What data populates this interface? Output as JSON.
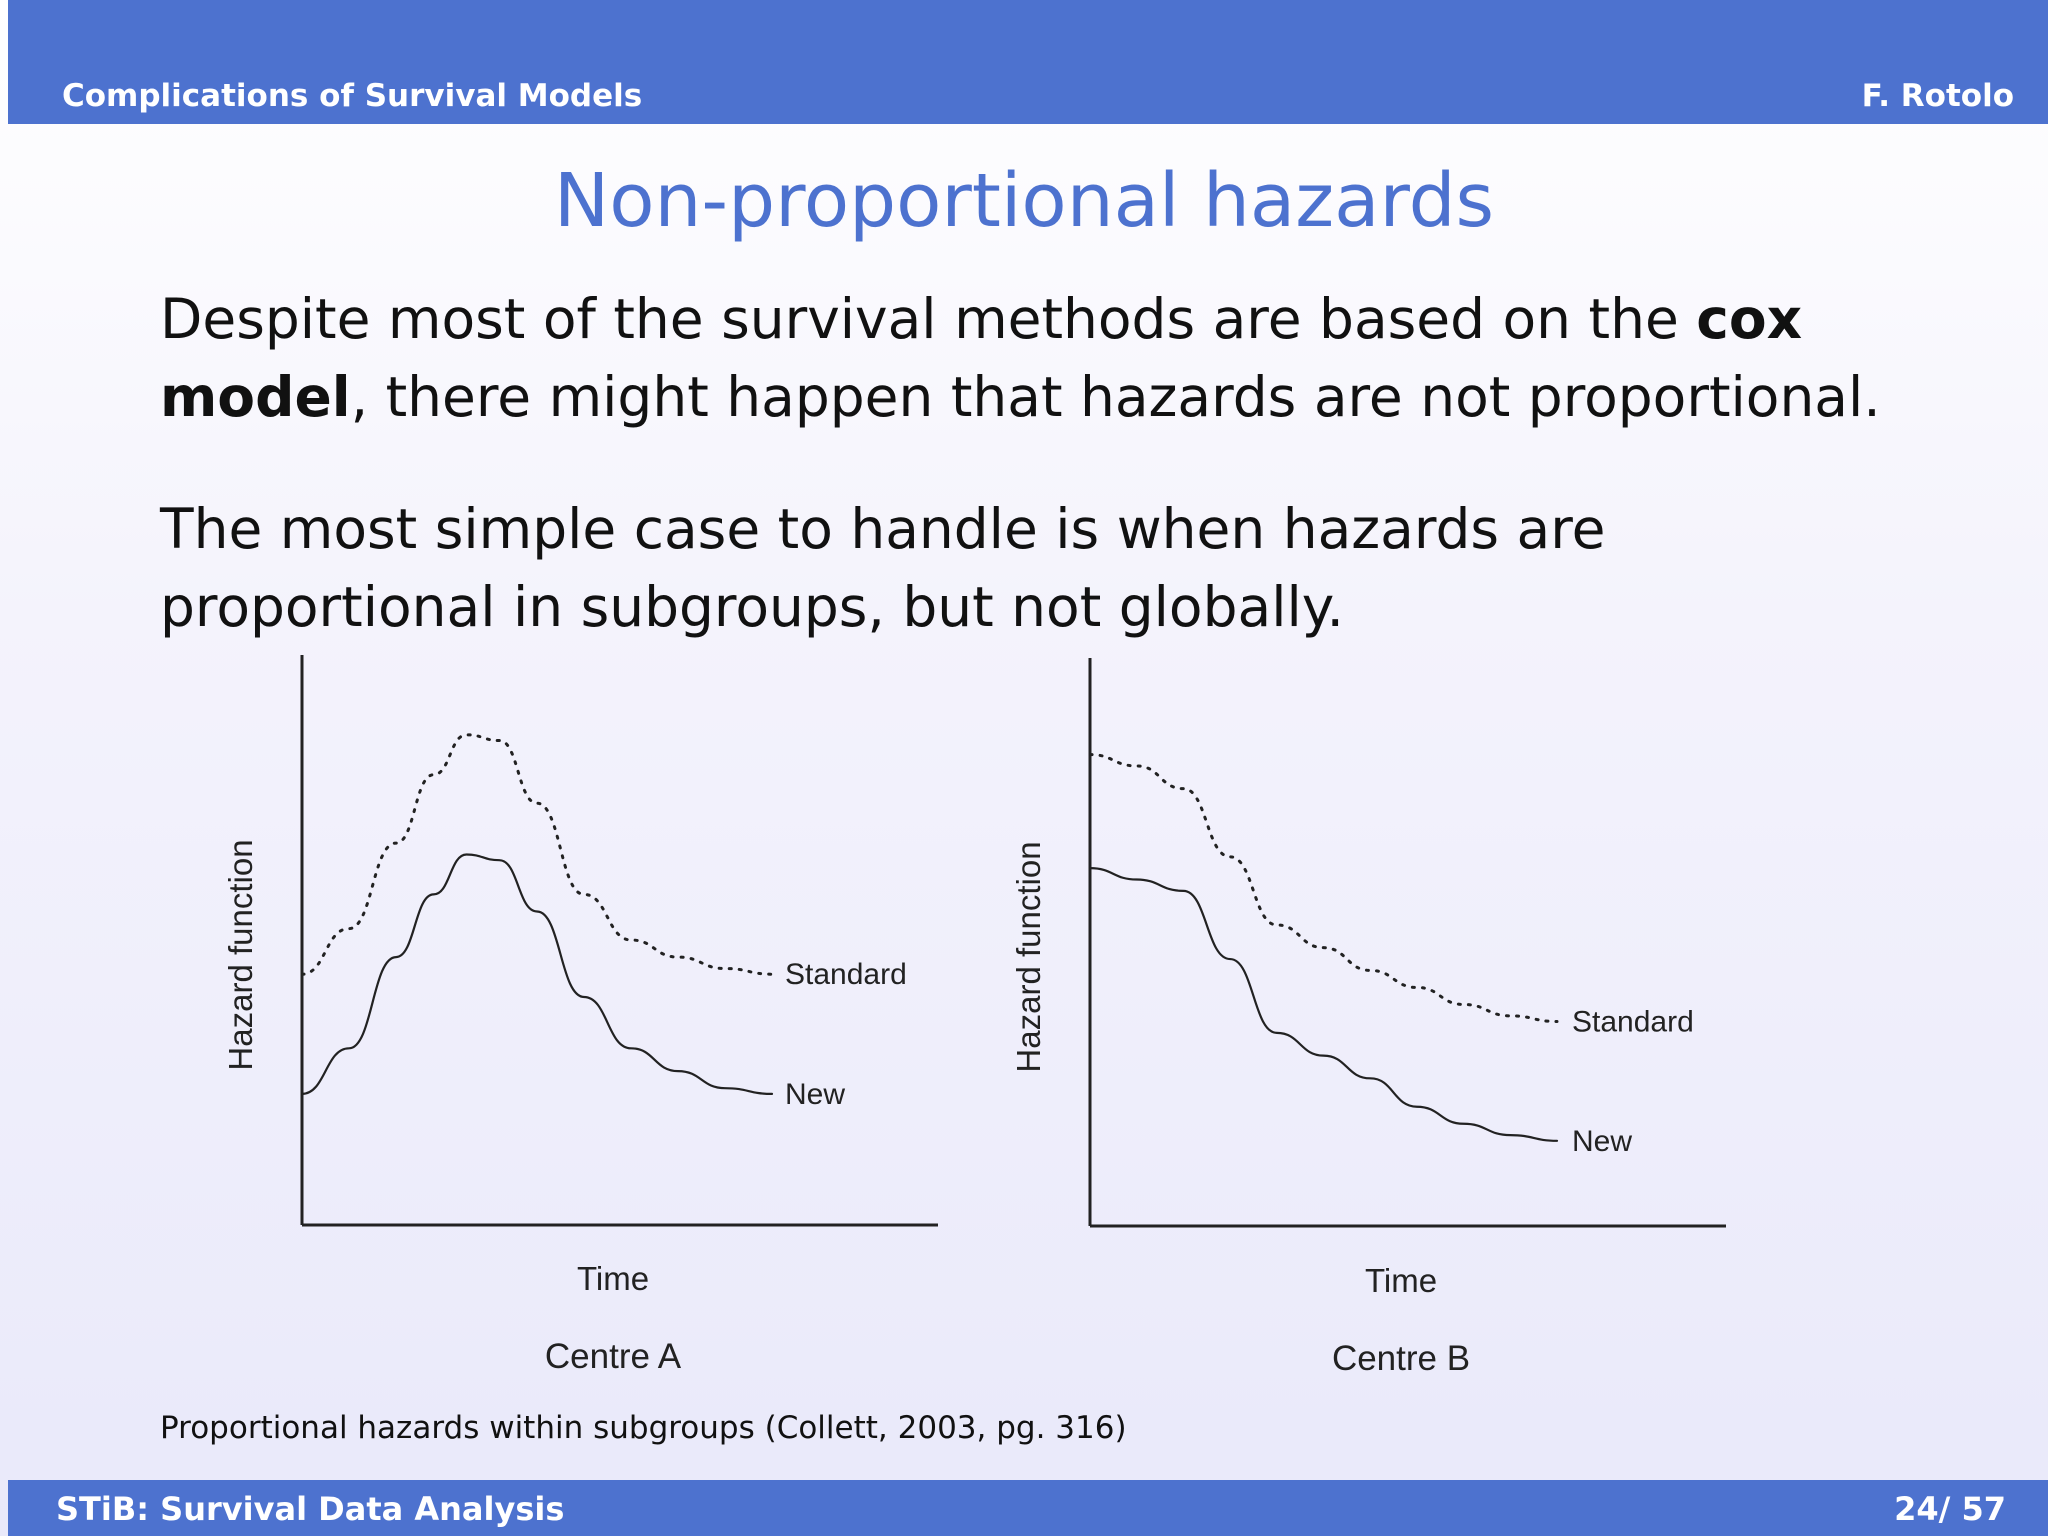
{
  "header": {
    "left": "Complications of Survival Models",
    "right": "F. Rotolo"
  },
  "slide": {
    "title": "Non-proportional hazards",
    "para1_before": "Despite most of the survival methods are based on the ",
    "para1_bold": "cox model",
    "para1_after": ", there might happen that hazards are not proportional.",
    "para2": "The most simple case to handle is when hazards are proportional in subgroups, but not globally.",
    "caption": "Proportional hazards within subgroups (Collett, 2003, pg. 316)"
  },
  "footer": {
    "left": "STiB: Survival Data Analysis",
    "right": "24/ 57"
  },
  "chart_data": [
    {
      "type": "line",
      "title": "Centre A",
      "xlabel": "Time",
      "ylabel": "Hazard function",
      "ylim": [
        0,
        1
      ],
      "grid": false,
      "series": [
        {
          "name": "Standard",
          "style": "dotted",
          "x": [
            0,
            0.1,
            0.2,
            0.28,
            0.35,
            0.42,
            0.5,
            0.6,
            0.7,
            0.8,
            0.9,
            1.0
          ],
          "y": [
            0.44,
            0.52,
            0.67,
            0.79,
            0.86,
            0.85,
            0.74,
            0.58,
            0.5,
            0.47,
            0.45,
            0.44
          ]
        },
        {
          "name": "New",
          "style": "solid",
          "x": [
            0,
            0.1,
            0.2,
            0.28,
            0.35,
            0.42,
            0.5,
            0.6,
            0.7,
            0.8,
            0.9,
            1.0
          ],
          "y": [
            0.23,
            0.31,
            0.47,
            0.58,
            0.65,
            0.64,
            0.55,
            0.4,
            0.31,
            0.27,
            0.24,
            0.23
          ]
        }
      ]
    },
    {
      "type": "line",
      "title": "Centre B",
      "xlabel": "Time",
      "ylabel": "Hazard function",
      "ylim": [
        0,
        1
      ],
      "grid": false,
      "series": [
        {
          "name": "Standard",
          "style": "dotted",
          "x": [
            0,
            0.1,
            0.2,
            0.3,
            0.4,
            0.5,
            0.6,
            0.7,
            0.8,
            0.9,
            1.0
          ],
          "y": [
            0.83,
            0.81,
            0.77,
            0.65,
            0.53,
            0.49,
            0.45,
            0.42,
            0.39,
            0.37,
            0.36
          ]
        },
        {
          "name": "New",
          "style": "solid",
          "x": [
            0,
            0.1,
            0.2,
            0.3,
            0.4,
            0.5,
            0.6,
            0.7,
            0.8,
            0.9,
            1.0
          ],
          "y": [
            0.63,
            0.61,
            0.59,
            0.47,
            0.34,
            0.3,
            0.26,
            0.21,
            0.18,
            0.16,
            0.15
          ]
        }
      ]
    }
  ]
}
